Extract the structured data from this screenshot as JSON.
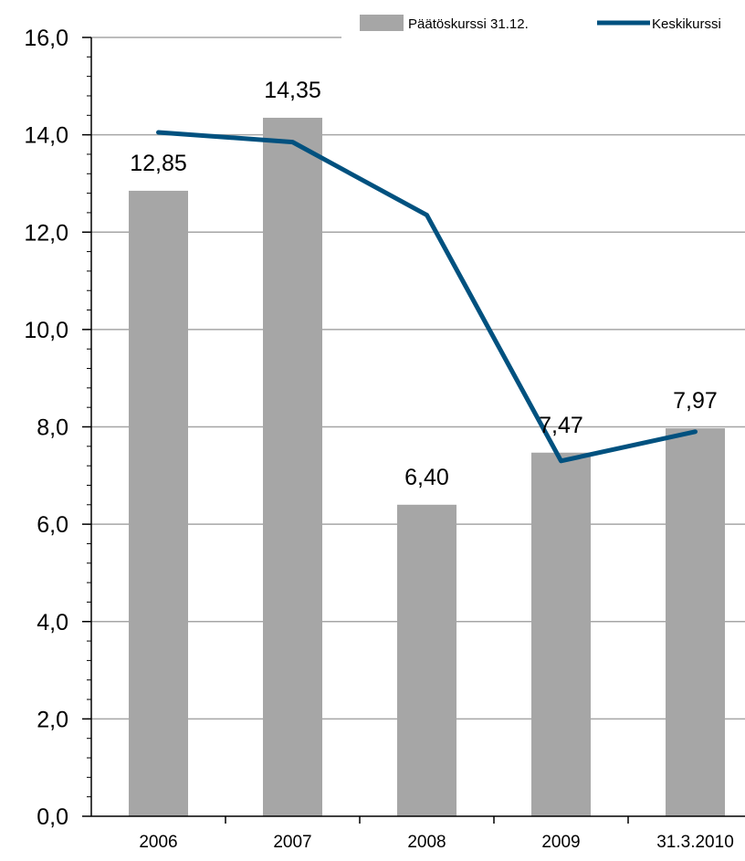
{
  "chart_data": {
    "type": "bar",
    "categories": [
      "2006",
      "2007",
      "2008",
      "2009",
      "31.3.2010"
    ],
    "series": [
      {
        "name": "Päätöskurssi 31.12.",
        "type": "bar",
        "values": [
          12.85,
          14.35,
          6.4,
          7.47,
          7.97
        ],
        "labels": [
          "12,85",
          "14,35",
          "6,40",
          "7,47",
          "7,97"
        ]
      },
      {
        "name": "Keskikurssi",
        "type": "line",
        "values": [
          14.05,
          13.85,
          12.35,
          7.3,
          7.9
        ]
      }
    ],
    "ylim": [
      0,
      16
    ],
    "yticks": [
      0,
      2,
      4,
      6,
      8,
      10,
      12,
      14,
      16
    ],
    "ytick_labels": [
      "0,0",
      "2,0",
      "4,0",
      "6,0",
      "8,0",
      "10,0",
      "12,0",
      "14,0",
      "16,0"
    ],
    "grid": true,
    "legend_position": "top-right",
    "colors": {
      "bar": "#a6a6a6",
      "line": "#00517f",
      "grid": "#a6a6a6",
      "axis": "#000000"
    }
  }
}
